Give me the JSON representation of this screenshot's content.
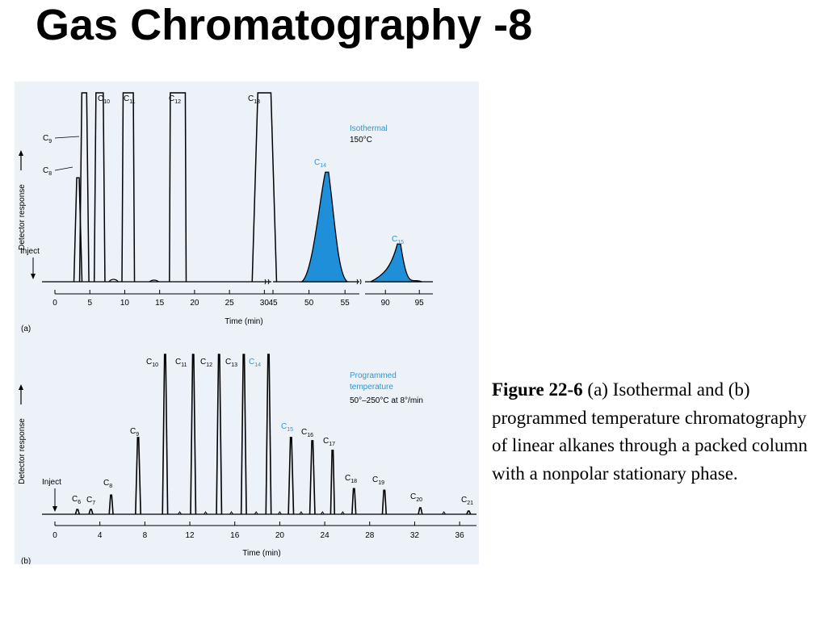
{
  "title": "Gas Chromatography -8",
  "caption": {
    "label": "Figure 22-6",
    "text": " (a) Isothermal and (b) programmed temperature chromatography of linear alkanes through a packed column with a nonpolar stationary phase."
  },
  "colors": {
    "accent": "#2e95d3",
    "fill": "#1e8fd8",
    "panel": "#edf2f8"
  },
  "chart_data": [
    {
      "type": "line",
      "panel_label": "(a)",
      "xlabel": "Time (min)",
      "ylabel": "Detector response",
      "inject_label": "Inject",
      "condition": [
        "Isothermal",
        "150°C"
      ],
      "x_segments": [
        [
          0,
          31
        ],
        [
          45,
          57
        ],
        [
          87,
          97
        ]
      ],
      "xticks": [
        0,
        5,
        10,
        15,
        20,
        25,
        30,
        45,
        50,
        55,
        90,
        95
      ],
      "ylim": [
        0,
        100
      ],
      "peaks": [
        {
          "sub": "8",
          "t": 3.3,
          "h": 55,
          "w": 0.2,
          "top": 0
        },
        {
          "sub": "9",
          "t": 4.2,
          "h": 100,
          "w": 0.32,
          "top": 0.25
        },
        {
          "sub": "10",
          "t": 6.4,
          "h": 100,
          "w": 0.42,
          "top": 0.5
        },
        {
          "sub": "11",
          "t": 10.5,
          "h": 100,
          "w": 0.55,
          "top": 0.8
        },
        {
          "sub": "12",
          "t": 17.6,
          "h": 100,
          "w": 0.85,
          "top": 1.3
        },
        {
          "sub": "13",
          "t": 30.0,
          "h": 100,
          "w": 1.4,
          "top": 1.1
        },
        {
          "sub": "14",
          "t": 52.5,
          "h": 58,
          "w": 2.2,
          "top": 0,
          "highlight": true
        },
        {
          "sub": "15",
          "t": 92.0,
          "h": 20,
          "w": 2.6,
          "top": 0,
          "highlight": true
        }
      ]
    },
    {
      "type": "line",
      "panel_label": "(b)",
      "xlabel": "Time (min)",
      "ylabel": "Detector response",
      "inject_label": "Inject",
      "condition": [
        "Programmed",
        "temperature",
        "50°–250°C at 8°/min"
      ],
      "xlim": [
        0,
        37.5
      ],
      "xticks": [
        0,
        4,
        8,
        12,
        16,
        20,
        24,
        28,
        32,
        36
      ],
      "ylim": [
        0,
        100
      ],
      "peaks": [
        {
          "sub": "6",
          "t": 2.0,
          "h": 3
        },
        {
          "sub": "7",
          "t": 3.2,
          "h": 3
        },
        {
          "sub": "8",
          "t": 5.0,
          "h": 12
        },
        {
          "sub": "9",
          "t": 7.4,
          "h": 48
        },
        {
          "sub": "10",
          "t": 9.8,
          "h": 100
        },
        {
          "sub": "11",
          "t": 12.3,
          "h": 100
        },
        {
          "sub": "12",
          "t": 14.6,
          "h": 100
        },
        {
          "sub": "13",
          "t": 16.8,
          "h": 100
        },
        {
          "sub": "14",
          "t": 19.0,
          "h": 100,
          "highlight": true
        },
        {
          "sub": "15",
          "t": 21.0,
          "h": 48,
          "highlight": true
        },
        {
          "sub": "16",
          "t": 22.9,
          "h": 46
        },
        {
          "sub": "17",
          "t": 24.7,
          "h": 40
        },
        {
          "sub": "18",
          "t": 26.6,
          "h": 16
        },
        {
          "sub": "19",
          "t": 29.3,
          "h": 15
        },
        {
          "sub": "20",
          "t": 32.5,
          "h": 4
        },
        {
          "sub": "21",
          "t": 36.8,
          "h": 2
        }
      ]
    }
  ]
}
